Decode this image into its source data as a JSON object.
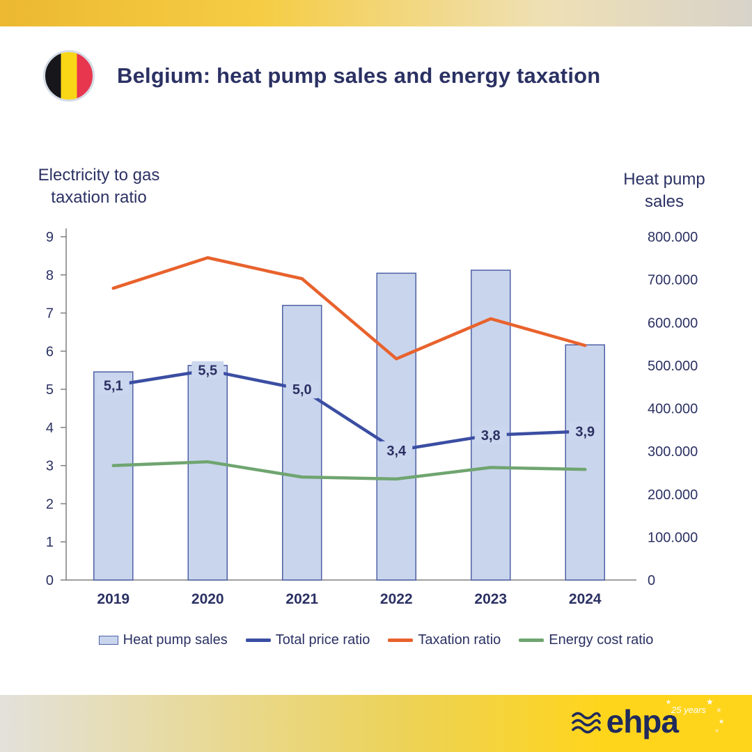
{
  "header": {
    "title": "Belgium: heat pump sales and energy taxation",
    "flag": "belgium-flag"
  },
  "chart_data": {
    "type": "bar+line",
    "categories": [
      "2019",
      "2020",
      "2021",
      "2022",
      "2023",
      "2024"
    ],
    "bar_series": {
      "name": "Heat pump sales",
      "axis": "right",
      "values": [
        485000,
        500000,
        640000,
        715000,
        722000,
        548000
      ]
    },
    "line_series": [
      {
        "name": "Total price ratio",
        "axis": "left",
        "color": "#3B4EA3",
        "values": [
          5.1,
          5.5,
          5.0,
          3.4,
          3.8,
          3.9
        ],
        "point_labels": [
          "5,1",
          "5,5",
          "5,0",
          "3,4",
          "3,8",
          "3,9"
        ]
      },
      {
        "name": "Taxation ratio",
        "axis": "left",
        "color": "#E8622D",
        "values": [
          7.65,
          8.45,
          7.9,
          5.8,
          6.85,
          6.15
        ]
      },
      {
        "name": "Energy cost ratio",
        "axis": "left",
        "color": "#6FA570",
        "values": [
          3.0,
          3.1,
          2.7,
          2.65,
          2.95,
          2.9
        ]
      }
    ],
    "left_axis": {
      "title": "Electricity to gas taxation ratio",
      "min": 0,
      "max": 9,
      "ticks": [
        0,
        1,
        2,
        3,
        4,
        5,
        6,
        7,
        8,
        9
      ]
    },
    "right_axis": {
      "title": "Heat pump sales",
      "min": 0,
      "max": 800000,
      "ticks": [
        0,
        100000,
        200000,
        300000,
        400000,
        500000,
        600000,
        700000,
        800000
      ],
      "tick_labels": [
        "0",
        "100.000",
        "200.000",
        "300.000",
        "400.000",
        "500.000",
        "600.000",
        "700.000",
        "800.000"
      ]
    },
    "legend_position": "bottom",
    "gridlines": false
  },
  "footer": {
    "logo_text": "ehpa",
    "badge_text": "25 years",
    "waves_icon": "heat-waves"
  },
  "colors": {
    "navy": "#2B3163",
    "bar_fill": "#C9D5EC",
    "bar_border": "#4D5FA5",
    "label_box": "#CBD7EE",
    "axis_gray": "#7F7F7F",
    "blue_line": "#3B4EA3",
    "orange_line": "#E8622D",
    "green_line": "#6FA570",
    "gold": "#F2C537",
    "footer_yellow": "#FFD51C",
    "flag_black": "#17161B",
    "flag_yellow": "#F9D616",
    "flag_red": "#E8364F"
  }
}
